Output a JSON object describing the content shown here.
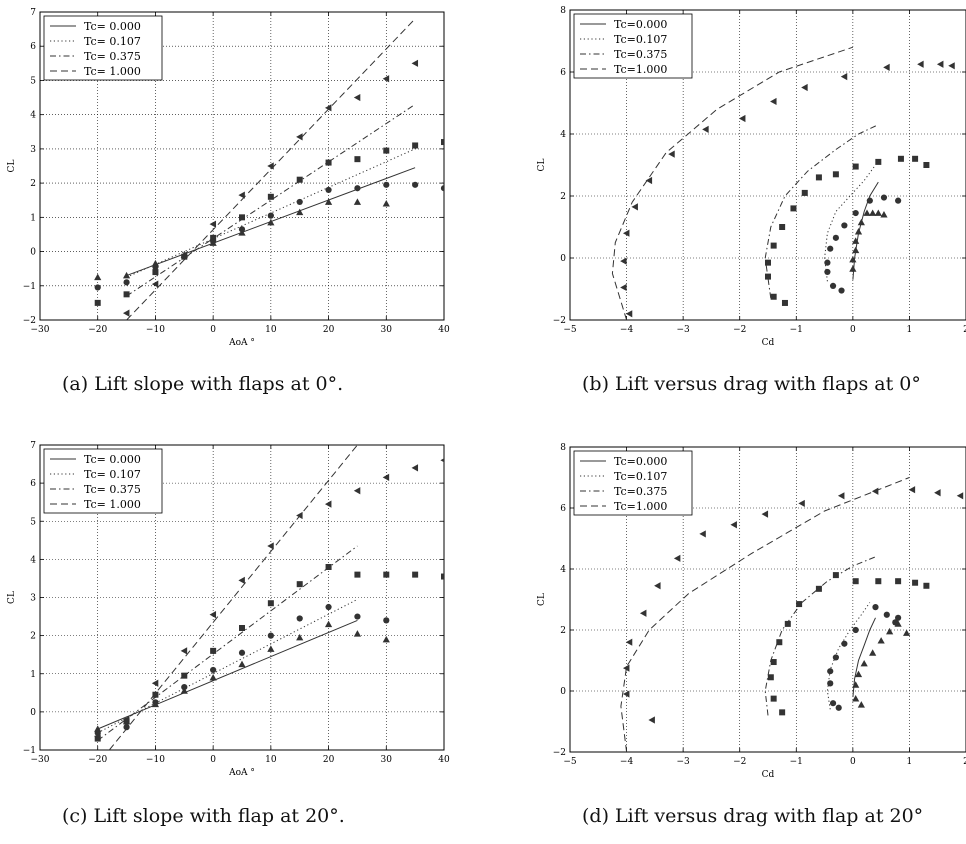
{
  "captions": {
    "a": "(a) Lift slope with flaps at 0°.",
    "b": "(b) Lift versus drag with flaps at 0°",
    "c": "(c) Lift slope with flap at 20°.",
    "d": "(d) Lift versus drag with flap at 20°"
  },
  "chart_data": [
    {
      "id": "a",
      "type": "scatter",
      "xlabel": "AoA °",
      "ylabel": "CL",
      "xlim": [
        -30,
        40
      ],
      "ylim": [
        -2,
        7
      ],
      "xticks": [
        -30,
        -20,
        -10,
        0,
        10,
        20,
        30,
        40
      ],
      "yticks": [
        -2,
        -1,
        0,
        1,
        2,
        3,
        4,
        5,
        6,
        7
      ],
      "grid": true,
      "legend_position": "top-left",
      "legend": [
        "Tc= 0.000",
        "Tc= 0.107",
        "Tc= 0.375",
        "Tc= 1.000"
      ],
      "fit_lines": [
        {
          "name": "Tc= 0.000",
          "style": "solid",
          "x": [
            -15,
            35
          ],
          "y": [
            -0.7,
            2.45
          ]
        },
        {
          "name": "Tc= 0.107",
          "style": "dotted",
          "x": [
            -15,
            35
          ],
          "y": [
            -0.75,
            3.0
          ]
        },
        {
          "name": "Tc= 0.375",
          "style": "dashdot",
          "x": [
            -15,
            35
          ],
          "y": [
            -1.3,
            4.3
          ]
        },
        {
          "name": "Tc= 1.000",
          "style": "dashed",
          "x": [
            -15,
            35
          ],
          "y": [
            -2.0,
            6.8
          ]
        }
      ],
      "markers": [
        {
          "marker": "triangle-up",
          "x": [
            -20,
            -15,
            -10,
            -5,
            0,
            5,
            10,
            15,
            20,
            25,
            30
          ],
          "y": [
            -0.75,
            -0.7,
            -0.35,
            -0.1,
            0.25,
            0.55,
            0.85,
            1.15,
            1.45,
            1.45,
            1.4
          ]
        },
        {
          "marker": "circle",
          "x": [
            -20,
            -15,
            -10,
            -5,
            0,
            5,
            10,
            15,
            20,
            25,
            30,
            35,
            40
          ],
          "y": [
            -1.05,
            -0.9,
            -0.45,
            -0.15,
            0.3,
            0.65,
            1.05,
            1.45,
            1.8,
            1.85,
            1.95,
            1.95,
            1.85
          ]
        },
        {
          "marker": "square",
          "x": [
            -20,
            -15,
            -10,
            -5,
            0,
            5,
            10,
            15,
            20,
            25,
            30,
            35,
            40
          ],
          "y": [
            -1.5,
            -1.25,
            -0.6,
            -0.15,
            0.4,
            1.0,
            1.6,
            2.1,
            2.6,
            2.7,
            2.95,
            3.1,
            3.2
          ]
        },
        {
          "marker": "triangle-left",
          "x": [
            -15,
            -10,
            -5,
            0,
            5,
            10,
            15,
            20,
            25,
            30,
            35
          ],
          "y": [
            -1.8,
            -0.95,
            -0.1,
            0.8,
            1.65,
            2.5,
            3.35,
            4.2,
            4.5,
            5.05,
            5.5
          ]
        }
      ]
    },
    {
      "id": "b",
      "type": "scatter",
      "xlabel": "Cd",
      "ylabel": "CL",
      "xlim": [
        -5,
        2
      ],
      "ylim": [
        -2,
        8
      ],
      "xticks": [
        -5,
        -4,
        -3,
        -2,
        -1,
        0,
        1,
        2
      ],
      "yticks": [
        -2,
        0,
        2,
        4,
        6,
        8
      ],
      "grid": true,
      "legend_position": "top-left",
      "legend": [
        "Tc=0.000",
        "Tc=0.107",
        "Tc=0.375",
        "Tc=1.000"
      ],
      "fit_lines": [
        {
          "name": "Tc=0.000",
          "style": "solid",
          "x": [
            0,
            0.03,
            0.1,
            0.2,
            0.3,
            0.45
          ],
          "y": [
            -0.7,
            0.0,
            0.8,
            1.5,
            2.0,
            2.45
          ]
        },
        {
          "name": "Tc=0.107",
          "style": "dotted",
          "x": [
            -0.45,
            -0.5,
            -0.45,
            -0.3,
            -0.05,
            0.2,
            0.4
          ],
          "y": [
            -0.75,
            0.0,
            0.8,
            1.5,
            2.0,
            2.5,
            3.0
          ]
        },
        {
          "name": "Tc=0.375",
          "style": "dashdot",
          "x": [
            -1.45,
            -1.55,
            -1.45,
            -1.2,
            -0.8,
            -0.3,
            0.1,
            0.45
          ],
          "y": [
            -1.3,
            0.0,
            1.0,
            2.0,
            2.8,
            3.5,
            4.0,
            4.3
          ]
        },
        {
          "name": "Tc=1.000",
          "style": "dashed",
          "x": [
            -4.0,
            -4.25,
            -4.2,
            -3.9,
            -3.3,
            -2.4,
            -1.3,
            0.0
          ],
          "y": [
            -2.0,
            -0.5,
            0.5,
            1.8,
            3.4,
            4.8,
            6.0,
            6.8
          ]
        }
      ],
      "markers": [
        {
          "marker": "triangle-up",
          "x": [
            0.0,
            0.0,
            0.05,
            0.05,
            0.1,
            0.15,
            0.25,
            0.35,
            0.45,
            0.55
          ],
          "y": [
            -0.35,
            -0.05,
            0.25,
            0.55,
            0.85,
            1.15,
            1.45,
            1.45,
            1.45,
            1.4
          ]
        },
        {
          "marker": "circle",
          "x": [
            -0.2,
            -0.35,
            -0.45,
            -0.45,
            -0.4,
            -0.3,
            -0.15,
            0.05,
            0.3,
            0.55,
            0.8
          ],
          "y": [
            -1.05,
            -0.9,
            -0.45,
            -0.15,
            0.3,
            0.65,
            1.05,
            1.45,
            1.85,
            1.95,
            1.85
          ]
        },
        {
          "marker": "square",
          "x": [
            -1.2,
            -1.4,
            -1.5,
            -1.5,
            -1.4,
            -1.25,
            -1.05,
            -0.85,
            -0.6,
            -0.3,
            0.05,
            0.45,
            0.85,
            1.1,
            1.3
          ],
          "y": [
            -1.45,
            -1.25,
            -0.6,
            -0.15,
            0.4,
            1.0,
            1.6,
            2.1,
            2.6,
            2.7,
            2.95,
            3.1,
            3.2,
            3.2,
            3.0
          ]
        },
        {
          "marker": "triangle-left",
          "x": [
            -3.95,
            -4.05,
            -4.05,
            -4.0,
            -3.85,
            -3.6,
            -3.2,
            -2.6,
            -1.95,
            -1.4,
            -0.85,
            -0.15,
            0.6,
            1.2,
            1.55,
            1.75
          ],
          "y": [
            -1.8,
            -0.95,
            -0.1,
            0.8,
            1.65,
            2.5,
            3.35,
            4.15,
            4.5,
            5.05,
            5.5,
            5.85,
            6.15,
            6.25,
            6.25,
            6.2
          ]
        }
      ]
    },
    {
      "id": "c",
      "type": "scatter",
      "xlabel": "AoA °",
      "ylabel": "CL",
      "xlim": [
        -30,
        40
      ],
      "ylim": [
        -1,
        7
      ],
      "xticks": [
        -30,
        -20,
        -10,
        0,
        10,
        20,
        30,
        40
      ],
      "yticks": [
        -1,
        0,
        1,
        2,
        3,
        4,
        5,
        6,
        7
      ],
      "grid": true,
      "legend_position": "top-left",
      "legend": [
        "Tc= 0.000",
        "Tc= 0.107",
        "Tc= 0.375",
        "Tc= 1.000"
      ],
      "fit_lines": [
        {
          "name": "Tc= 0.000",
          "style": "solid",
          "x": [
            -20,
            25
          ],
          "y": [
            -0.45,
            2.4
          ]
        },
        {
          "name": "Tc= 0.107",
          "style": "dotted",
          "x": [
            -20,
            25
          ],
          "y": [
            -0.55,
            2.95
          ]
        },
        {
          "name": "Tc= 0.375",
          "style": "dashdot",
          "x": [
            -20,
            25
          ],
          "y": [
            -0.75,
            4.35
          ]
        },
        {
          "name": "Tc= 1.000",
          "style": "dashed",
          "x": [
            -18,
            25
          ],
          "y": [
            -1.0,
            7.0
          ]
        }
      ],
      "markers": [
        {
          "marker": "triangle-up",
          "x": [
            -20,
            -15,
            -10,
            -5,
            0,
            5,
            10,
            15,
            20,
            25,
            30
          ],
          "y": [
            -0.45,
            -0.25,
            0.2,
            0.55,
            0.9,
            1.25,
            1.65,
            1.95,
            2.3,
            2.05,
            1.9
          ]
        },
        {
          "marker": "circle",
          "x": [
            -20,
            -15,
            -10,
            -5,
            0,
            5,
            10,
            15,
            20,
            25,
            30
          ],
          "y": [
            -0.55,
            -0.4,
            0.25,
            0.65,
            1.1,
            1.55,
            2.0,
            2.45,
            2.75,
            2.5,
            2.4
          ]
        },
        {
          "marker": "square",
          "x": [
            -20,
            -15,
            -10,
            -5,
            0,
            5,
            10,
            15,
            20,
            25,
            30,
            35,
            40
          ],
          "y": [
            -0.7,
            -0.25,
            0.45,
            0.95,
            1.6,
            2.2,
            2.85,
            3.35,
            3.8,
            3.6,
            3.6,
            3.6,
            3.55
          ]
        },
        {
          "marker": "triangle-left",
          "x": [
            -20,
            -15,
            -10,
            -5,
            0,
            5,
            10,
            15,
            20,
            25,
            30,
            35,
            40
          ],
          "y": [
            -0.65,
            -0.2,
            0.75,
            1.6,
            2.55,
            3.45,
            4.35,
            5.15,
            5.45,
            5.8,
            6.15,
            6.4,
            6.6
          ]
        }
      ]
    },
    {
      "id": "d",
      "type": "scatter",
      "xlabel": "Cd",
      "ylabel": "CL",
      "xlim": [
        -5,
        2
      ],
      "ylim": [
        -2,
        8
      ],
      "xticks": [
        -5,
        -4,
        -3,
        -2,
        -1,
        0,
        1,
        2
      ],
      "yticks": [
        -2,
        0,
        2,
        4,
        6,
        8
      ],
      "grid": true,
      "legend_position": "top-left",
      "legend": [
        "Tc=0.000",
        "Tc=0.107",
        "Tc=0.375",
        "Tc=1.000"
      ],
      "fit_lines": [
        {
          "name": "Tc=0.000",
          "style": "solid",
          "x": [
            0.0,
            0.03,
            0.1,
            0.2,
            0.3,
            0.4
          ],
          "y": [
            -0.2,
            0.4,
            1.0,
            1.5,
            2.0,
            2.4
          ]
        },
        {
          "name": "Tc=0.107",
          "style": "dotted",
          "x": [
            -0.4,
            -0.45,
            -0.4,
            -0.25,
            -0.05,
            0.15,
            0.3
          ],
          "y": [
            -0.6,
            0.0,
            0.7,
            1.4,
            2.0,
            2.5,
            2.9
          ]
        },
        {
          "name": "Tc=0.375",
          "style": "dashdot",
          "x": [
            -1.5,
            -1.55,
            -1.45,
            -1.25,
            -0.9,
            -0.45,
            0.0,
            0.4
          ],
          "y": [
            -0.8,
            0.0,
            1.0,
            2.0,
            2.9,
            3.6,
            4.1,
            4.4
          ]
        },
        {
          "name": "Tc=1.000",
          "style": "dashed",
          "x": [
            -4.0,
            -4.1,
            -4.0,
            -3.6,
            -2.9,
            -1.8,
            -0.5,
            1.0
          ],
          "y": [
            -2.0,
            -0.5,
            0.8,
            2.0,
            3.2,
            4.5,
            5.9,
            7.0
          ]
        }
      ],
      "markers": [
        {
          "marker": "triangle-up",
          "x": [
            0.15,
            0.05,
            0.05,
            0.1,
            0.2,
            0.35,
            0.5,
            0.65,
            0.8,
            0.95
          ],
          "y": [
            -0.45,
            -0.25,
            0.2,
            0.55,
            0.9,
            1.25,
            1.65,
            1.95,
            2.2,
            1.9
          ]
        },
        {
          "marker": "circle",
          "x": [
            -0.25,
            -0.35,
            -0.4,
            -0.4,
            -0.3,
            -0.15,
            0.05,
            0.4,
            0.6,
            0.75,
            0.8
          ],
          "y": [
            -0.55,
            -0.4,
            0.25,
            0.65,
            1.1,
            1.55,
            2.0,
            2.75,
            2.5,
            2.25,
            2.4
          ]
        },
        {
          "marker": "square",
          "x": [
            -1.25,
            -1.4,
            -1.45,
            -1.4,
            -1.3,
            -1.15,
            -0.95,
            -0.6,
            -0.3,
            0.05,
            0.45,
            0.8,
            1.1,
            1.3
          ],
          "y": [
            -0.7,
            -0.25,
            0.45,
            0.95,
            1.6,
            2.2,
            2.85,
            3.35,
            3.8,
            3.6,
            3.6,
            3.6,
            3.55,
            3.45
          ]
        },
        {
          "marker": "triangle-left",
          "x": [
            -3.55,
            -4.0,
            -4.0,
            -3.95,
            -3.7,
            -3.45,
            -3.1,
            -2.65,
            -2.1,
            -1.55,
            -0.9,
            -0.2,
            0.4,
            1.05,
            1.5,
            1.9
          ],
          "y": [
            -0.95,
            -0.1,
            0.75,
            1.6,
            2.55,
            3.45,
            4.35,
            5.15,
            5.45,
            5.8,
            6.15,
            6.4,
            6.55,
            6.6,
            6.5,
            6.4
          ]
        }
      ]
    }
  ]
}
